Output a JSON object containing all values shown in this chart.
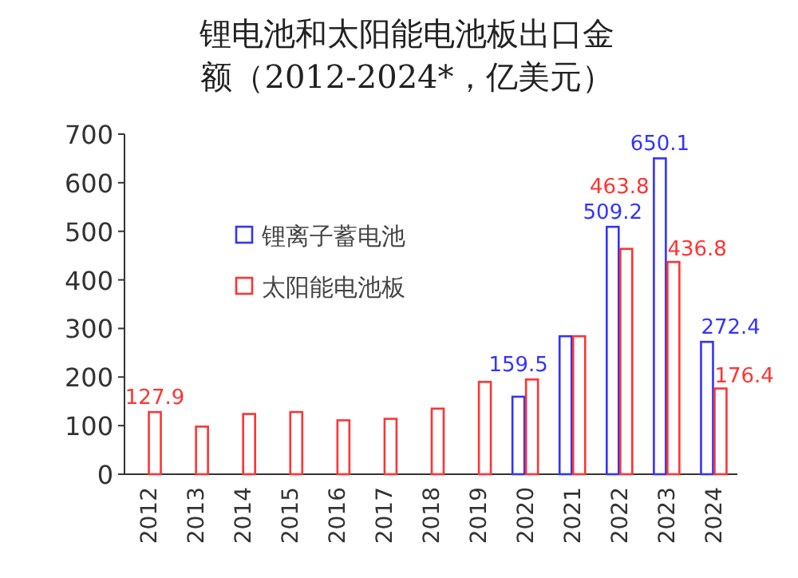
{
  "chart_data": {
    "type": "bar",
    "title": "锂电池和太阳能电池板出口金额（2012-2024*，亿美元）",
    "categories": [
      "2012",
      "2013",
      "2014",
      "2015",
      "2016",
      "2017",
      "2018",
      "2019",
      "2020",
      "2021",
      "2022",
      "2023",
      "2024"
    ],
    "series": [
      {
        "name": "锂离子蓄电池",
        "color": "#3333ff",
        "values": [
          null,
          null,
          null,
          null,
          null,
          null,
          null,
          null,
          159.5,
          284,
          509.2,
          650.1,
          272.4
        ],
        "value_labels": [
          null,
          null,
          null,
          null,
          null,
          null,
          null,
          null,
          "159.5",
          null,
          "509.2",
          "650.1",
          "272.4"
        ]
      },
      {
        "name": "太阳能电池板",
        "color": "#ff3333",
        "values": [
          127.9,
          98,
          124,
          128,
          111,
          114,
          135,
          190,
          195,
          284,
          463.8,
          436.8,
          176.4
        ],
        "value_labels": [
          "127.9",
          null,
          null,
          null,
          null,
          null,
          null,
          null,
          null,
          null,
          "463.8",
          "436.8",
          "176.4"
        ]
      }
    ],
    "ylim": [
      0,
      700
    ],
    "yticks": [
      0,
      100,
      200,
      300,
      400,
      500,
      600,
      700
    ],
    "legend": "left"
  }
}
